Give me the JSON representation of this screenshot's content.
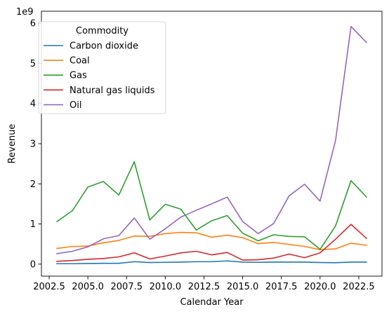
{
  "chart_data": {
    "type": "line",
    "title": "",
    "xlabel": "Calendar Year",
    "ylabel": "Revenue",
    "offset_text": "1e9",
    "xlim": [
      2002.0,
      2024.0
    ],
    "ylim": [
      -0.3,
      6.3
    ],
    "xticks": [
      2002.5,
      2005.0,
      2007.5,
      2010.0,
      2012.5,
      2015.0,
      2017.5,
      2020.0,
      2022.5
    ],
    "xtick_labels": [
      "2002.5",
      "2005.0",
      "2007.5",
      "2010.0",
      "2012.5",
      "2015.0",
      "2017.5",
      "2020.0",
      "2022.5"
    ],
    "yticks": [
      0,
      1,
      2,
      3,
      4,
      5,
      6
    ],
    "ytick_labels": [
      "0",
      "1",
      "2",
      "3",
      "4",
      "5",
      "6"
    ],
    "grid": false,
    "legend": {
      "title": "Commodity",
      "placement": "top-left"
    },
    "x": [
      2003,
      2004,
      2005,
      2006,
      2007,
      2008,
      2009,
      2010,
      2011,
      2012,
      2013,
      2014,
      2015,
      2016,
      2017,
      2018,
      2019,
      2020,
      2021,
      2022,
      2023
    ],
    "series": [
      {
        "name": "Carbon dioxide",
        "color": "#1f77b4",
        "values": [
          0.01,
          0.01,
          0.015,
          0.02,
          0.02,
          0.06,
          0.04,
          0.045,
          0.05,
          0.06,
          0.06,
          0.08,
          0.05,
          0.045,
          0.05,
          0.05,
          0.05,
          0.04,
          0.035,
          0.05,
          0.05
        ]
      },
      {
        "name": "Coal",
        "color": "#ff7f0e",
        "values": [
          0.39,
          0.44,
          0.45,
          0.53,
          0.59,
          0.7,
          0.69,
          0.76,
          0.79,
          0.78,
          0.67,
          0.72,
          0.66,
          0.51,
          0.54,
          0.49,
          0.44,
          0.36,
          0.38,
          0.52,
          0.47
        ]
      },
      {
        "name": "Gas",
        "color": "#2ca02c",
        "values": [
          1.06,
          1.33,
          1.92,
          2.06,
          1.72,
          2.55,
          1.1,
          1.49,
          1.37,
          0.85,
          1.08,
          1.21,
          0.77,
          0.58,
          0.73,
          0.69,
          0.68,
          0.37,
          0.95,
          2.08,
          1.67
        ]
      },
      {
        "name": "Natural gas liquids",
        "color": "#d62728",
        "values": [
          0.07,
          0.09,
          0.12,
          0.14,
          0.18,
          0.28,
          0.13,
          0.2,
          0.28,
          0.32,
          0.23,
          0.29,
          0.1,
          0.11,
          0.15,
          0.25,
          0.16,
          0.28,
          0.62,
          0.99,
          0.64
        ]
      },
      {
        "name": "Oil",
        "color": "#9467bd",
        "values": [
          0.26,
          0.32,
          0.43,
          0.63,
          0.71,
          1.15,
          0.62,
          0.88,
          1.17,
          1.34,
          1.5,
          1.67,
          1.06,
          0.76,
          1.01,
          1.7,
          1.99,
          1.57,
          3.08,
          5.92,
          5.52
        ]
      }
    ]
  }
}
